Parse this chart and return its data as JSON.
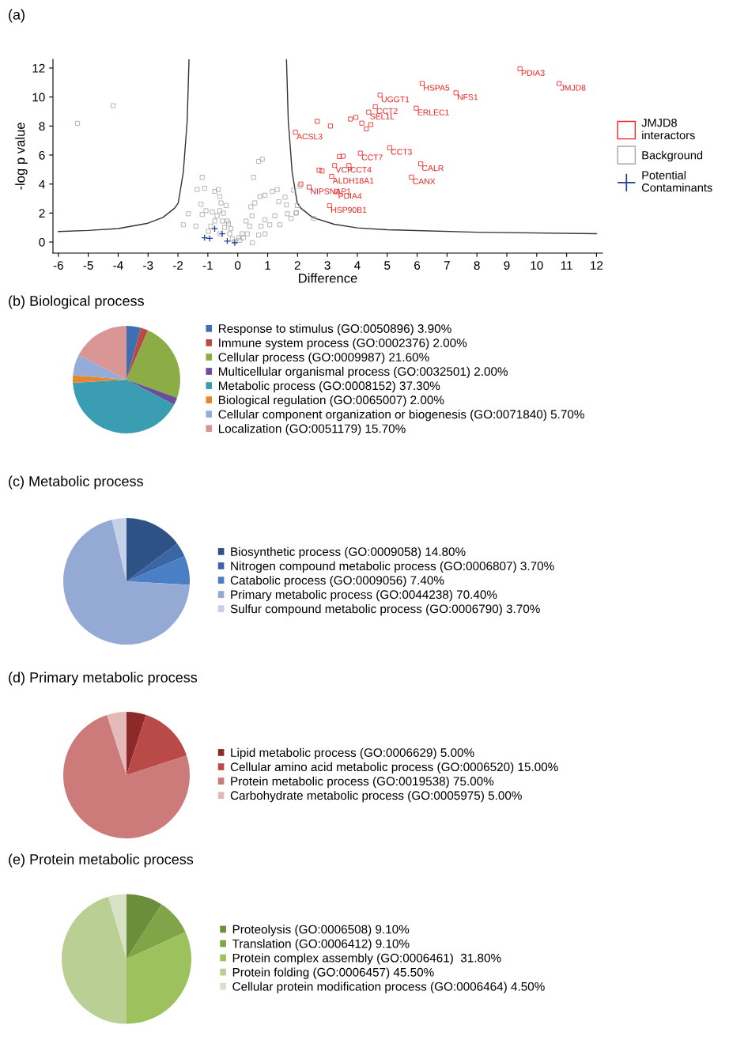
{
  "chart_data": [
    {
      "type": "scatter",
      "title": "(a)",
      "xlabel": "Difference",
      "ylabel": "-log p value",
      "xlim": [
        -6.18,
        12.2
      ],
      "ylim": [
        -0.76,
        12.6
      ],
      "xticks": [
        -6,
        -5,
        -4,
        -3,
        -2,
        -1,
        0,
        1,
        2,
        3,
        4,
        5,
        6,
        7,
        8,
        9,
        10,
        11,
        12
      ],
      "yticks": [
        0,
        2,
        4,
        6,
        8,
        10,
        12
      ],
      "legend": "right",
      "series": [
        {
          "type": "line",
          "color": "#333333",
          "marker": "none",
          "x": [
            -6,
            -5,
            -4,
            -3,
            -2.5,
            -2.11,
            -1.99,
            -1.82,
            -1.69,
            -1.63
          ],
          "values": [
            0.73,
            0.8,
            0.93,
            1.3,
            1.7,
            2.34,
            2.7,
            4.82,
            8.37,
            12.6
          ]
        },
        {
          "type": "line",
          "color": "#333333",
          "marker": "none",
          "x": [
            1.63,
            1.69,
            1.82,
            1.99,
            2.11,
            2.5,
            3.22,
            4,
            5,
            8,
            12
          ],
          "values": [
            12.6,
            8.37,
            4.82,
            2.7,
            2.34,
            1.7,
            1.23,
            0.98,
            0.85,
            0.68,
            0.58
          ]
        },
        {
          "type": "scatter",
          "name": "JMJD8\ninteractors",
          "color": "#ee2222",
          "marker": "square",
          "x": [
            9.44,
            10.75,
            6.17,
            7.3,
            4.76,
            5.97,
            4.6,
            4.38,
            3.77,
            2.66,
            1.93,
            5.08,
            6.12,
            5.81,
            4.1,
            3.52,
            3.72,
            3.24,
            3.14,
            3.32,
            3.07,
            2.39,
            2.11,
            2.72,
            2.82,
            3.95,
            4.15,
            3.1,
            4.3,
            4.45,
            3.4
          ],
          "values": [
            11.95,
            10.93,
            10.93,
            10.29,
            10.13,
            9.23,
            9.33,
            8.96,
            8.48,
            8.32,
            7.57,
            6.51,
            5.39,
            4.48,
            6.13,
            5.92,
            5.28,
            5.28,
            4.53,
            3.47,
            2.51,
            3.79,
            4.0,
            4.96,
            4.9,
            8.6,
            8.2,
            8.0,
            7.8,
            8.1,
            5.9
          ]
        },
        {
          "type": "scatter",
          "name": "Background",
          "color": "#a6a6a6",
          "marker": "square",
          "x": [
            -5.36,
            -4.17,
            -1.19,
            -1.36,
            -1.11,
            -1.65,
            -1.82,
            -1.4,
            -1.23,
            -1.19,
            -1.06,
            -0.85,
            -0.77,
            -0.65,
            -0.6,
            -0.56,
            -0.77,
            -0.6,
            -0.48,
            -0.39,
            -0.35,
            -0.44,
            -0.6,
            -0.27,
            -0.18,
            0.07,
            0.19,
            0.32,
            0.4,
            0.48,
            0.57,
            0.44,
            0.53,
            0.7,
            0.82,
            0.74,
            0.91,
            1.16,
            1.32,
            1.58,
            1.37,
            1.24,
            0.91,
            0.78,
            1.07,
            1.41,
            0.91,
            0.7,
            0.49,
            0.28,
            1.66,
            1.78,
            1.95,
            1.99,
            1.87,
            2.08,
            -0.1,
            0.03,
            0.15,
            -0.23,
            -0.31,
            -0.52,
            -0.69,
            -0.9,
            -0.98,
            1.63,
            1.96,
            2.54
          ],
          "values": [
            8.19,
            9.4,
            4.47,
            3.63,
            3.71,
            1.95,
            1.19,
            1.1,
            2.61,
            1.9,
            2.16,
            2.07,
            3.49,
            3.62,
            3.14,
            2.7,
            1.45,
            2.16,
            1.99,
            2.52,
            1.45,
            1.01,
            0.57,
            0.57,
            0.21,
            0.12,
            0.3,
            0.57,
            1.1,
            1.81,
            2.7,
            2.43,
            4.47,
            5.57,
            5.71,
            3.14,
            3.23,
            3.49,
            3.62,
            3.09,
            2.78,
            1.81,
            1.54,
            1.1,
            1.19,
            1.19,
            0.57,
            0.48,
            -0.05,
            1.45,
            1.95,
            1.63,
            1.99,
            2.52,
            3.58,
            3.85,
            0.04,
            0.3,
            0.57,
            0.92,
            1.28,
            1.45,
            1.81,
            1.1,
            0.74,
            2.56,
            2.03,
            1.63
          ]
        },
        {
          "type": "scatter",
          "name": "Potential\nContaminants",
          "color": "#1f3d99",
          "marker": "cross",
          "x": [
            -1.11,
            -0.94,
            -0.77,
            -0.52,
            -0.35,
            -0.1
          ],
          "values": [
            0.3,
            0.25,
            0.92,
            0.57,
            0.07,
            -0.05
          ]
        }
      ],
      "annotations": [
        {
          "text": "PDIA3",
          "x": 9.44,
          "y": 11.95
        },
        {
          "text": "JMJD8",
          "x": 10.75,
          "y": 10.93
        },
        {
          "text": "HSPA5",
          "x": 6.17,
          "y": 10.93
        },
        {
          "text": "NFS1",
          "x": 7.3,
          "y": 10.29
        },
        {
          "text": "UGGT1",
          "x": 4.76,
          "y": 10.13
        },
        {
          "text": "ERLEC1",
          "x": 5.97,
          "y": 9.23
        },
        {
          "text": "CCT2",
          "x": 4.6,
          "y": 9.33
        },
        {
          "text": "SEL1L",
          "x": 4.38,
          "y": 8.96
        },
        {
          "text": "ACSL3",
          "x": 1.93,
          "y": 7.57
        },
        {
          "text": "CCT3",
          "x": 5.08,
          "y": 6.51
        },
        {
          "text": "CALR",
          "x": 6.12,
          "y": 5.39
        },
        {
          "text": "CANX",
          "x": 5.81,
          "y": 4.48
        },
        {
          "text": "CCT7",
          "x": 4.1,
          "y": 6.13
        },
        {
          "text": "CCT4",
          "x": 3.72,
          "y": 5.28
        },
        {
          "text": "VCP",
          "x": 3.24,
          "y": 5.28
        },
        {
          "text": "ALDH18A1",
          "x": 3.14,
          "y": 4.53
        },
        {
          "text": "PDIA4",
          "x": 3.32,
          "y": 3.47
        },
        {
          "text": "HSP90B1",
          "x": 3.07,
          "y": 2.51
        },
        {
          "text": "NIPSNAP1",
          "x": 2.39,
          "y": 3.79
        }
      ]
    },
    {
      "type": "pie",
      "title": "(b) Biological process",
      "legend": "right",
      "categories": [
        "Response to stimulus (GO:0050896)",
        "Immune system process (GO:0002376)",
        "Cellular process (GO:0009987)",
        "Multicellular organismal process (GO:0032501)",
        "Metabolic process (GO:0008152)",
        "Biological regulation (GO:0065007)",
        "Cellular component organization or biogenesis (GO:0071840)",
        "Localization (GO:0051179)"
      ],
      "values": [
        3.9,
        2.0,
        21.6,
        2.0,
        37.3,
        2.0,
        5.7,
        15.7
      ],
      "value_labels": [
        "3.90%",
        "2.00%",
        "21.60%",
        "2.00%",
        "37.30%",
        "2.00%",
        "5.70%",
        "15.70%"
      ],
      "colors": [
        "#3e6fb0",
        "#b94a48",
        "#8cac45",
        "#6b4e9b",
        "#3a9db1",
        "#e8862a",
        "#94acd7",
        "#d99694"
      ]
    },
    {
      "type": "pie",
      "title": "(c) Metabolic process",
      "legend": "right",
      "categories": [
        "Biosynthetic process (GO:0009058)",
        "Nitrogen compound metabolic process (GO:0006807)",
        "Catabolic process (GO:0009056)",
        "Primary metabolic process (GO:0044238)",
        "Sulfur compound metabolic process (GO:0006790)"
      ],
      "values": [
        14.8,
        3.7,
        7.4,
        70.4,
        3.7
      ],
      "value_labels": [
        "14.80%",
        "3.70%",
        "7.40%",
        "70.40%",
        "3.70%"
      ],
      "colors": [
        "#2f5286",
        "#3b66a6",
        "#4a7fc6",
        "#94a9d3",
        "#c5d1e8"
      ]
    },
    {
      "type": "pie",
      "title": "(d) Primary metabolic process",
      "legend": "right",
      "categories": [
        "Lipid metabolic process (GO:0006629)",
        "Cellular amino acid metabolic process (GO:0006520)",
        "Protein metabolic process (GO:0019538)",
        "Carbohydrate metabolic process (GO:0005975)"
      ],
      "values": [
        5.0,
        15.0,
        75.0,
        5.0
      ],
      "value_labels": [
        "5.00%",
        "15.00%",
        "75.00%",
        "5.00%"
      ],
      "colors": [
        "#8c2a2a",
        "#b94a48",
        "#cc7a7a",
        "#e5b9b8"
      ]
    },
    {
      "type": "pie",
      "title": "(e) Protein metabolic process",
      "legend": "right",
      "categories": [
        "Proteolysis (GO:0006508)",
        "Translation (GO:0006412)",
        "Protein complex assembly (GO:0006461) ",
        "Protein folding (GO:0006457)",
        "Cellular protein modification process (GO:0006464)"
      ],
      "values": [
        9.1,
        9.1,
        31.8,
        45.5,
        4.5
      ],
      "value_labels": [
        "9.10%",
        "9.10%",
        "31.80%",
        "45.50%",
        "4.50%"
      ],
      "colors": [
        "#6b8e3a",
        "#7fa548",
        "#9dc15c",
        "#b9cf93",
        "#d7e2c4"
      ]
    }
  ]
}
